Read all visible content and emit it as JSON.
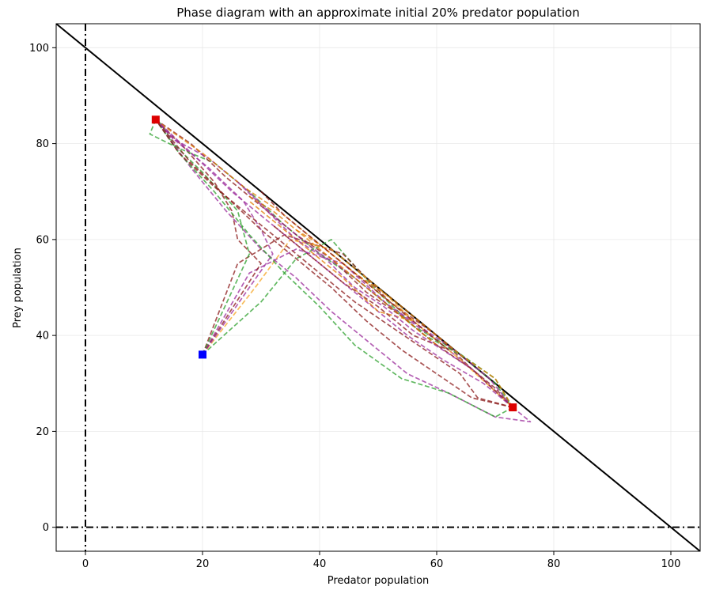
{
  "chart_data": {
    "type": "line",
    "title": "Phase diagram with an approximate initial 20% predator population",
    "xlabel": "Predator population",
    "ylabel": "Prey population",
    "xlim": [
      -5,
      105
    ],
    "ylim": [
      -5,
      105
    ],
    "x_ticks": [
      0,
      20,
      40,
      60,
      80,
      100
    ],
    "y_ticks": [
      0,
      20,
      40,
      60,
      80,
      100
    ],
    "x_tick_labels": [
      "0",
      "20",
      "40",
      "60",
      "80",
      "100"
    ],
    "y_tick_labels": [
      "0",
      "20",
      "40",
      "60",
      "80",
      "100"
    ],
    "grid": true,
    "reference_lines": [
      {
        "kind": "diagonal",
        "x": [
          -5,
          105
        ],
        "y": [
          105,
          -5
        ],
        "color": "#000000",
        "style": "solid"
      },
      {
        "kind": "vertical",
        "x": 0,
        "color": "#000000",
        "style": "dash-dot"
      },
      {
        "kind": "horizontal",
        "y": 0,
        "color": "#000000",
        "style": "dash-dot"
      }
    ],
    "start_point": {
      "x": 20,
      "y": 36,
      "color": "#0000ff"
    },
    "end_points": [
      {
        "x": 12,
        "y": 85,
        "color": "#dd0000"
      },
      {
        "x": 73,
        "y": 25,
        "color": "#dd0000"
      }
    ],
    "series": [
      {
        "color": "#2ca02c",
        "points": [
          [
            20,
            36
          ],
          [
            30,
            47
          ],
          [
            36,
            56
          ],
          [
            42,
            60
          ],
          [
            50,
            49
          ],
          [
            56,
            42
          ],
          [
            63,
            37
          ],
          [
            70,
            31
          ],
          [
            73,
            25
          ]
        ]
      },
      {
        "color": "#8b1a1a",
        "points": [
          [
            20,
            36
          ],
          [
            26,
            55
          ],
          [
            34,
            61
          ],
          [
            44,
            57
          ],
          [
            52,
            47
          ],
          [
            60,
            40
          ],
          [
            66,
            33
          ],
          [
            70,
            29
          ],
          [
            73,
            25
          ]
        ]
      },
      {
        "color": "#9b2b9b",
        "points": [
          [
            20,
            36
          ],
          [
            28,
            53
          ],
          [
            36,
            58
          ],
          [
            44,
            55
          ],
          [
            52,
            46
          ],
          [
            60,
            39
          ],
          [
            67,
            32
          ],
          [
            73,
            25
          ]
        ]
      },
      {
        "color": "#f5a623",
        "points": [
          [
            20,
            36
          ],
          [
            29,
            50
          ],
          [
            35,
            60
          ],
          [
            42,
            58
          ],
          [
            50,
            50
          ],
          [
            57,
            42
          ],
          [
            64,
            35
          ],
          [
            73,
            25
          ]
        ]
      },
      {
        "color": "#2ca02c",
        "points": [
          [
            20,
            36
          ],
          [
            28,
            57
          ],
          [
            26,
            66
          ],
          [
            20,
            74
          ],
          [
            15,
            80
          ],
          [
            13,
            84
          ],
          [
            12,
            85
          ]
        ]
      },
      {
        "color": "#8b1a1a",
        "points": [
          [
            20,
            36
          ],
          [
            30,
            55
          ],
          [
            26,
            60
          ],
          [
            25,
            66
          ],
          [
            22,
            72
          ],
          [
            17,
            79
          ],
          [
            12,
            85
          ]
        ]
      },
      {
        "color": "#9b2b9b",
        "points": [
          [
            20,
            36
          ],
          [
            32,
            57
          ],
          [
            30,
            62
          ],
          [
            27,
            68
          ],
          [
            21,
            75
          ],
          [
            15,
            81
          ],
          [
            12,
            85
          ]
        ]
      },
      {
        "color": "#2ca02c",
        "points": [
          [
            12,
            85
          ],
          [
            11,
            82
          ],
          [
            16,
            79
          ],
          [
            22,
            76
          ],
          [
            28,
            70
          ],
          [
            34,
            63
          ],
          [
            40,
            57
          ],
          [
            46,
            52
          ],
          [
            52,
            46
          ],
          [
            58,
            40
          ],
          [
            64,
            36
          ],
          [
            70,
            30
          ],
          [
            73,
            25
          ]
        ]
      },
      {
        "color": "#8b1a1a",
        "points": [
          [
            12,
            85
          ],
          [
            18,
            80
          ],
          [
            24,
            73
          ],
          [
            30,
            67
          ],
          [
            36,
            61
          ],
          [
            42,
            56
          ],
          [
            48,
            49
          ],
          [
            54,
            44
          ],
          [
            60,
            38
          ],
          [
            66,
            33
          ],
          [
            73,
            25
          ]
        ]
      },
      {
        "color": "#9b2b9b",
        "points": [
          [
            12,
            85
          ],
          [
            15,
            81
          ],
          [
            21,
            77
          ],
          [
            27,
            71
          ],
          [
            33,
            64
          ],
          [
            39,
            58
          ],
          [
            45,
            53
          ],
          [
            51,
            47
          ],
          [
            57,
            42
          ],
          [
            63,
            37
          ],
          [
            69,
            31
          ],
          [
            73,
            25
          ]
        ]
      },
      {
        "color": "#e07b00",
        "points": [
          [
            13,
            84
          ],
          [
            20,
            78
          ],
          [
            27,
            71
          ],
          [
            33,
            66
          ],
          [
            40,
            59
          ],
          [
            46,
            53
          ],
          [
            52,
            48
          ],
          [
            58,
            42
          ],
          [
            64,
            36
          ],
          [
            70,
            31
          ],
          [
            73,
            25
          ]
        ]
      },
      {
        "color": "#8b1a1a",
        "points": [
          [
            73,
            25
          ],
          [
            66,
            27
          ],
          [
            60,
            32
          ],
          [
            54,
            37
          ],
          [
            48,
            43
          ],
          [
            42,
            50
          ],
          [
            36,
            56
          ],
          [
            30,
            62
          ],
          [
            24,
            69
          ],
          [
            18,
            76
          ],
          [
            12,
            85
          ]
        ]
      },
      {
        "color": "#9b2b9b",
        "points": [
          [
            73,
            25
          ],
          [
            76,
            22
          ],
          [
            70,
            23
          ],
          [
            62,
            28
          ],
          [
            55,
            32
          ],
          [
            48,
            39
          ],
          [
            42,
            45
          ],
          [
            36,
            52
          ],
          [
            30,
            58
          ],
          [
            24,
            66
          ],
          [
            18,
            75
          ],
          [
            12,
            85
          ]
        ]
      },
      {
        "color": "#2ca02c",
        "points": [
          [
            73,
            25
          ],
          [
            70,
            23
          ],
          [
            62,
            28
          ],
          [
            54,
            31
          ],
          [
            46,
            38
          ],
          [
            40,
            46
          ],
          [
            34,
            53
          ],
          [
            28,
            61
          ],
          [
            22,
            70
          ],
          [
            16,
            78
          ],
          [
            12,
            85
          ]
        ]
      },
      {
        "color": "#8b1a1a",
        "points": [
          [
            73,
            25
          ],
          [
            67,
            27
          ],
          [
            64,
            32
          ],
          [
            58,
            37
          ],
          [
            52,
            42
          ],
          [
            46,
            47
          ],
          [
            40,
            53
          ],
          [
            34,
            59
          ],
          [
            28,
            65
          ],
          [
            22,
            71
          ],
          [
            16,
            78
          ],
          [
            12,
            85
          ]
        ]
      },
      {
        "color": "#9b2b9b",
        "points": [
          [
            73,
            25
          ],
          [
            68,
            30
          ],
          [
            61,
            35
          ],
          [
            55,
            40
          ],
          [
            49,
            46
          ],
          [
            43,
            52
          ],
          [
            37,
            58
          ],
          [
            31,
            64
          ],
          [
            25,
            70
          ],
          [
            19,
            77
          ],
          [
            12,
            85
          ]
        ]
      },
      {
        "color": "#e07b00",
        "points": [
          [
            36,
            62
          ],
          [
            40,
            59
          ],
          [
            44,
            55
          ],
          [
            48,
            51
          ],
          [
            52,
            47
          ],
          [
            56,
            43
          ],
          [
            50,
            45
          ],
          [
            44,
            52
          ],
          [
            38,
            58
          ],
          [
            32,
            64
          ],
          [
            28,
            68
          ]
        ]
      },
      {
        "color": "#8b1a1a",
        "points": [
          [
            30,
            70
          ],
          [
            34,
            65
          ],
          [
            38,
            61
          ],
          [
            42,
            57
          ],
          [
            46,
            53
          ],
          [
            50,
            49
          ],
          [
            54,
            45
          ],
          [
            58,
            41
          ],
          [
            62,
            37
          ],
          [
            56,
            40
          ],
          [
            50,
            46
          ],
          [
            44,
            51
          ],
          [
            38,
            57
          ],
          [
            32,
            63
          ]
        ]
      },
      {
        "color": "#e07b00",
        "points": [
          [
            28,
            69
          ],
          [
            32,
            66
          ],
          [
            36,
            62
          ],
          [
            40,
            58
          ],
          [
            44,
            54
          ],
          [
            48,
            50
          ],
          [
            52,
            46
          ],
          [
            56,
            42
          ],
          [
            60,
            38
          ]
        ]
      },
      {
        "color": "#9b2b9b",
        "points": [
          [
            26,
            72
          ],
          [
            31,
            66
          ],
          [
            36,
            60
          ],
          [
            41,
            56
          ],
          [
            46,
            50
          ],
          [
            51,
            46
          ],
          [
            56,
            41
          ],
          [
            61,
            37
          ],
          [
            66,
            33
          ]
        ]
      }
    ]
  }
}
